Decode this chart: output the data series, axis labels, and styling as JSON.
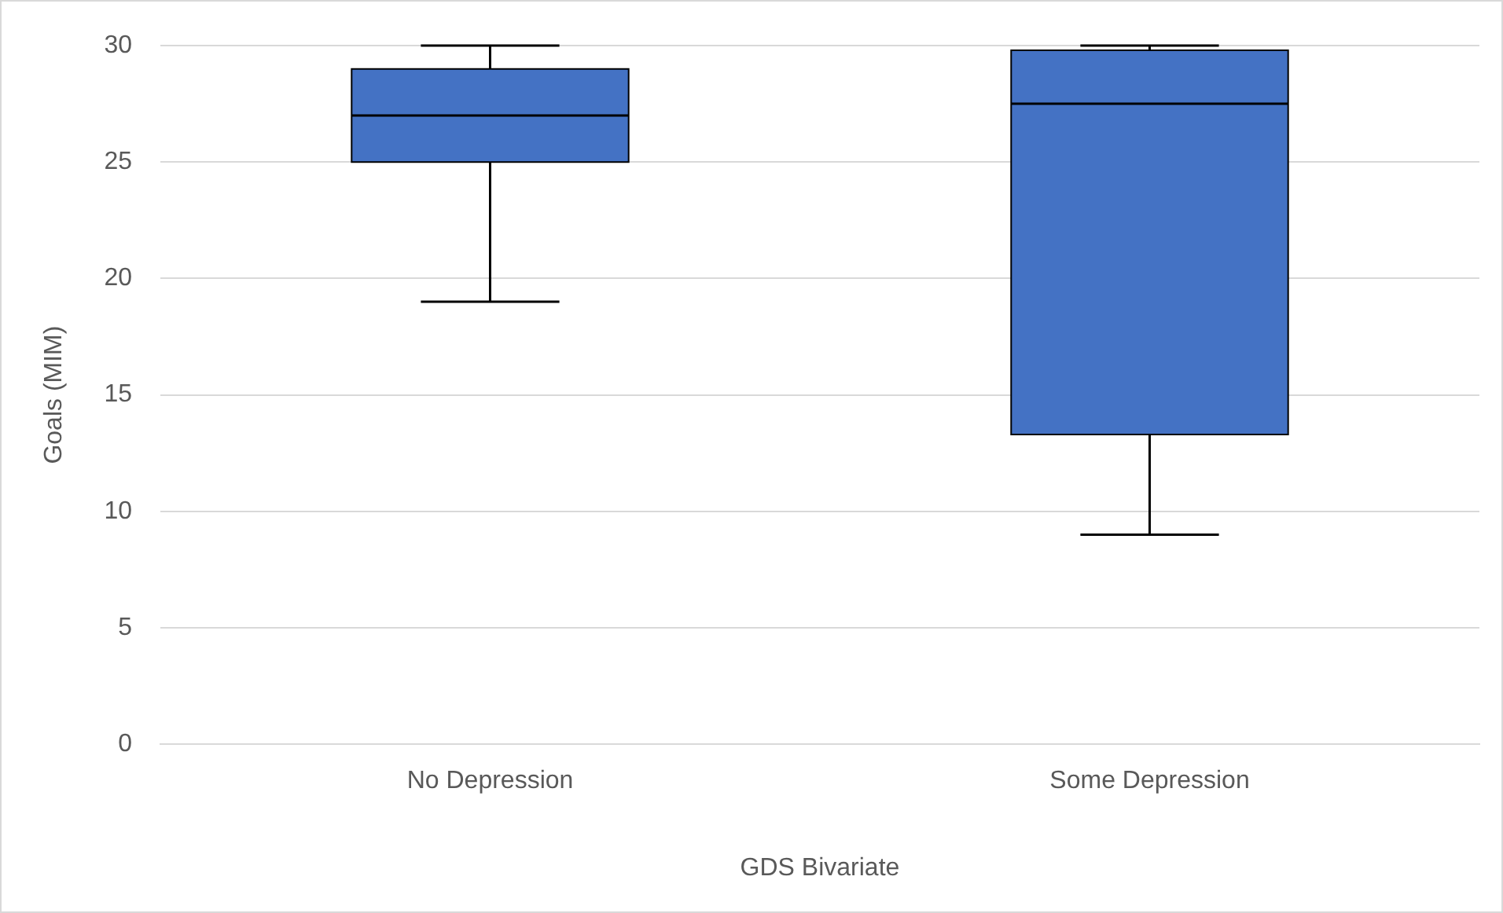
{
  "chart_data": {
    "type": "box",
    "xlabel": "GDS Bivariate",
    "ylabel": "Goals (MIM)",
    "categories": [
      "No Depression",
      "Some Depression"
    ],
    "series": [
      {
        "color": "#4472c4",
        "boxes": [
          {
            "low": 19,
            "q1": 25,
            "median": 27,
            "q3": 29,
            "high": 30
          },
          {
            "low": 9,
            "q1": 13.3,
            "median": 27.5,
            "q3": 29.8,
            "high": 30
          }
        ]
      }
    ],
    "ylim": [
      0,
      30
    ],
    "yticks": [
      0,
      5,
      10,
      15,
      20,
      25,
      30
    ],
    "grid": "y",
    "legend": false
  }
}
